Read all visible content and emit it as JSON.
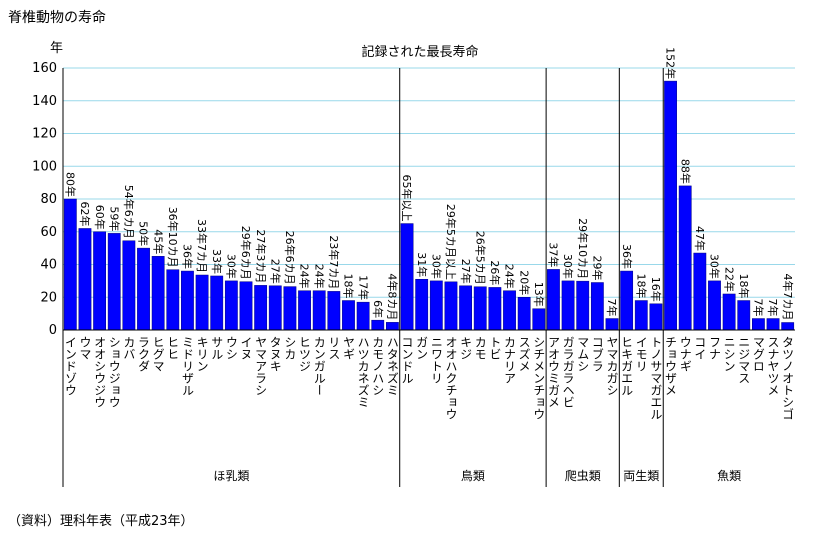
{
  "chart_data": {
    "type": "bar",
    "title": "脊椎動物の寿命",
    "subtitle": "記録された最長寿命",
    "y_label": "年",
    "source": "（資料）理科年表（平成23年）",
    "ylim": [
      0,
      160
    ],
    "yticks": [
      0,
      20,
      40,
      60,
      80,
      100,
      120,
      140,
      160
    ],
    "grid": true,
    "color": "#0000ff",
    "series": [
      {
        "name": "ほ乳類",
        "categories": [
          "インドゾウ",
          "ウマ",
          "オオシウジウ",
          "ショウジョウ",
          "カバ",
          "ラクダ",
          "ヒグマ",
          "ヒヒ",
          "ミドリザル",
          "キリン",
          "サル",
          "ウシ",
          "イヌ",
          "ヤマアラシ",
          "タヌキ",
          "シカ",
          "ヒツジ",
          "カンガルー",
          "リス",
          "ヤギ",
          "ハツカネズミ",
          "カモノハシ",
          "ハタネズミ"
        ],
        "values": [
          80,
          62,
          60,
          59,
          54.5,
          50,
          45,
          36.83,
          36,
          33.58,
          33,
          30,
          29.5,
          27.25,
          27,
          26.5,
          24,
          24,
          23.58,
          18,
          17,
          6,
          4.67
        ],
        "value_labels": [
          "80年",
          "62年",
          "60年",
          "59年",
          "54年6カ月",
          "50年",
          "45年",
          "36年10カ月",
          "36年",
          "33年7カ月",
          "33年",
          "30年",
          "29年6カ月",
          "27年3カ月",
          "27年",
          "26年6カ月",
          "24年",
          "24年",
          "23年7カ月",
          "18年",
          "17年",
          "6年",
          "4年8カ月"
        ]
      },
      {
        "name": "鳥類",
        "categories": [
          "コンドル",
          "ガン",
          "ニワトリ",
          "オオハクチョウ",
          "キジ",
          "カモ",
          "トビ",
          "カナリア",
          "スズメ",
          "シチメンチョウ"
        ],
        "values": [
          65,
          31,
          30,
          29.42,
          27,
          26.42,
          26,
          24,
          20,
          13
        ],
        "value_labels": [
          "65年以上",
          "31年",
          "30年",
          "29年5カ月以上",
          "27年",
          "26年5カ月",
          "26年",
          "24年",
          "20年",
          "13年"
        ]
      },
      {
        "name": "爬虫類",
        "categories": [
          "アオウミガメ",
          "ガラガラヘビ",
          "マムシ",
          "コブラ",
          "ヤマカガシ"
        ],
        "values": [
          37,
          30,
          29.83,
          29,
          7
        ],
        "value_labels": [
          "37年",
          "30年",
          "29年10カ月",
          "29年",
          "7年"
        ]
      },
      {
        "name": "両生類",
        "categories": [
          "ヒキガエル",
          "イモリ",
          "トノサマガエル"
        ],
        "values": [
          36,
          18,
          16
        ],
        "value_labels": [
          "36年",
          "18年",
          "16年"
        ]
      },
      {
        "name": "魚類",
        "categories": [
          "チョウザメ",
          "ウナギ",
          "コイ",
          "フナ",
          "ニシン",
          "ニジマス",
          "マグロ",
          "スナヤツメ",
          "タツノオトシゴ"
        ],
        "values": [
          152,
          88,
          47,
          30,
          22,
          18,
          7,
          7,
          4.58
        ],
        "value_labels": [
          "152年",
          "88年",
          "47年",
          "30年",
          "22年",
          "18年",
          "7年",
          "7年",
          "4年7カ月"
        ]
      }
    ]
  }
}
